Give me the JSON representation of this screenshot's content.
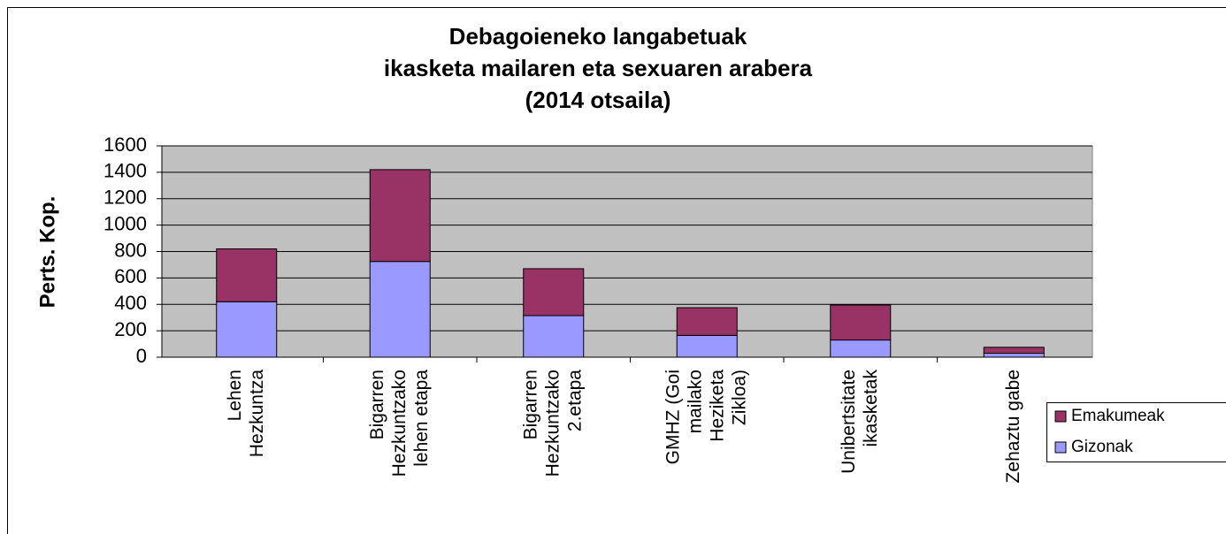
{
  "chart_data": {
    "type": "stacked-bar",
    "title": [
      "Debagoieneko langabetuak",
      "ikasketa mailaren eta sexuaren arabera",
      "(2014 otsaila)"
    ],
    "y_label": "Perts. Kop.",
    "categories": [
      [
        "Lehen",
        "Hezkuntza"
      ],
      [
        "Bigarren",
        "Hezkuntzako",
        "lehen etapa"
      ],
      [
        "Bigarren",
        "Hezkuntzako",
        "2.etapa"
      ],
      [
        "GMHZ (Goi",
        "mailako",
        "Heziketa",
        "Zikloa)"
      ],
      [
        "Unibertsitate",
        "ikasketak"
      ],
      [
        "Zehaztu gabe"
      ]
    ],
    "series": [
      {
        "name": "Gizonak",
        "color": "#9999ff",
        "values": [
          420,
          725,
          315,
          165,
          130,
          30
        ]
      },
      {
        "name": "Emakumeak",
        "color": "#993366",
        "values": [
          400,
          695,
          355,
          210,
          265,
          45
        ]
      }
    ],
    "ylim": [
      0,
      1600
    ],
    "yticks": [
      0,
      200,
      400,
      600,
      800,
      1000,
      1200,
      1400,
      1600
    ],
    "grid": true,
    "legend": "right"
  }
}
